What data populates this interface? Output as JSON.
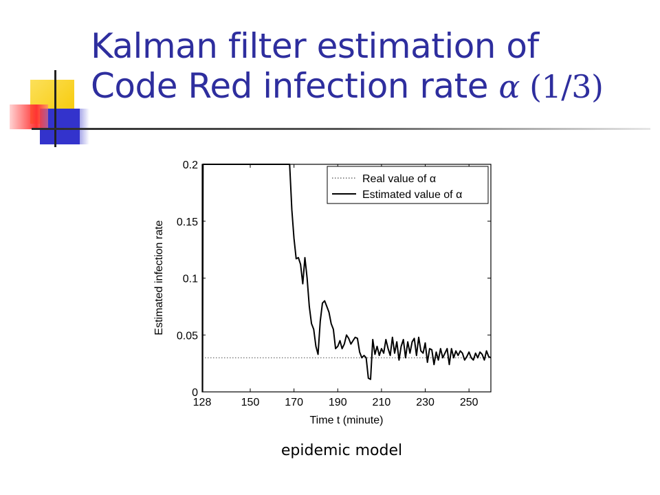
{
  "slide": {
    "title_line1": "Kalman filter estimation of",
    "title_line2_text": "Code Red infection rate ",
    "title_alpha": "α",
    "title_part": "(1/3)",
    "caption": "epidemic model",
    "colors": {
      "title": "#2e2e9e",
      "deco_yellow": "#f7c800",
      "deco_blue": "#3333cc",
      "deco_red": "#ff3333"
    }
  },
  "chart_data": {
    "type": "line",
    "title": "",
    "xlabel": "Time t (minute)",
    "ylabel": "Estimated infection rate",
    "xlim": [
      128,
      260
    ],
    "ylim": [
      0,
      0.2
    ],
    "xticks": [
      "128",
      "150",
      "170",
      "190",
      "210",
      "230",
      "250"
    ],
    "yticks": [
      "0",
      "0.05",
      "0.1",
      "0.15",
      "0.2"
    ],
    "legend_position": "top-right",
    "grid": false,
    "legend": [
      "Real value of α",
      "Estimated value of α"
    ],
    "series": [
      {
        "name": "Real value of α",
        "style": "dotted",
        "x": [
          128,
          260
        ],
        "y": [
          0.03,
          0.03
        ]
      },
      {
        "name": "Estimated value of α",
        "style": "solid",
        "x": [
          128.2,
          128.4,
          168,
          169,
          170,
          171,
          172,
          173,
          174,
          175,
          176,
          177,
          178,
          179,
          180,
          181,
          182,
          183,
          184,
          185,
          186,
          187,
          188,
          189,
          190,
          191,
          192,
          193,
          194,
          195,
          196,
          197,
          198,
          199,
          200,
          201,
          202,
          203,
          204,
          205,
          206,
          207,
          208,
          209,
          210,
          211,
          212,
          213,
          214,
          215,
          216,
          217,
          218,
          219,
          220,
          221,
          222,
          223,
          224,
          225,
          226,
          227,
          228,
          229,
          230,
          231,
          232,
          233,
          234,
          235,
          236,
          237,
          238,
          239,
          240,
          241,
          242,
          243,
          244,
          245,
          246,
          247,
          248,
          249,
          250,
          251,
          252,
          253,
          254,
          255,
          256,
          257,
          258,
          259,
          260
        ],
        "y": [
          0.0,
          0.2,
          0.2,
          0.16,
          0.135,
          0.117,
          0.118,
          0.112,
          0.095,
          0.118,
          0.1,
          0.075,
          0.06,
          0.055,
          0.04,
          0.033,
          0.062,
          0.078,
          0.08,
          0.075,
          0.07,
          0.06,
          0.055,
          0.038,
          0.04,
          0.045,
          0.038,
          0.042,
          0.05,
          0.047,
          0.042,
          0.045,
          0.048,
          0.047,
          0.035,
          0.03,
          0.032,
          0.03,
          0.012,
          0.011,
          0.046,
          0.033,
          0.04,
          0.032,
          0.038,
          0.034,
          0.046,
          0.038,
          0.032,
          0.048,
          0.034,
          0.044,
          0.028,
          0.04,
          0.046,
          0.03,
          0.044,
          0.034,
          0.044,
          0.047,
          0.032,
          0.048,
          0.036,
          0.034,
          0.043,
          0.026,
          0.038,
          0.037,
          0.024,
          0.035,
          0.028,
          0.038,
          0.03,
          0.034,
          0.038,
          0.024,
          0.038,
          0.03,
          0.036,
          0.032,
          0.036,
          0.034,
          0.028,
          0.031,
          0.035,
          0.03,
          0.028,
          0.034,
          0.03,
          0.035,
          0.033,
          0.028,
          0.036,
          0.031,
          0.03
        ]
      }
    ]
  }
}
